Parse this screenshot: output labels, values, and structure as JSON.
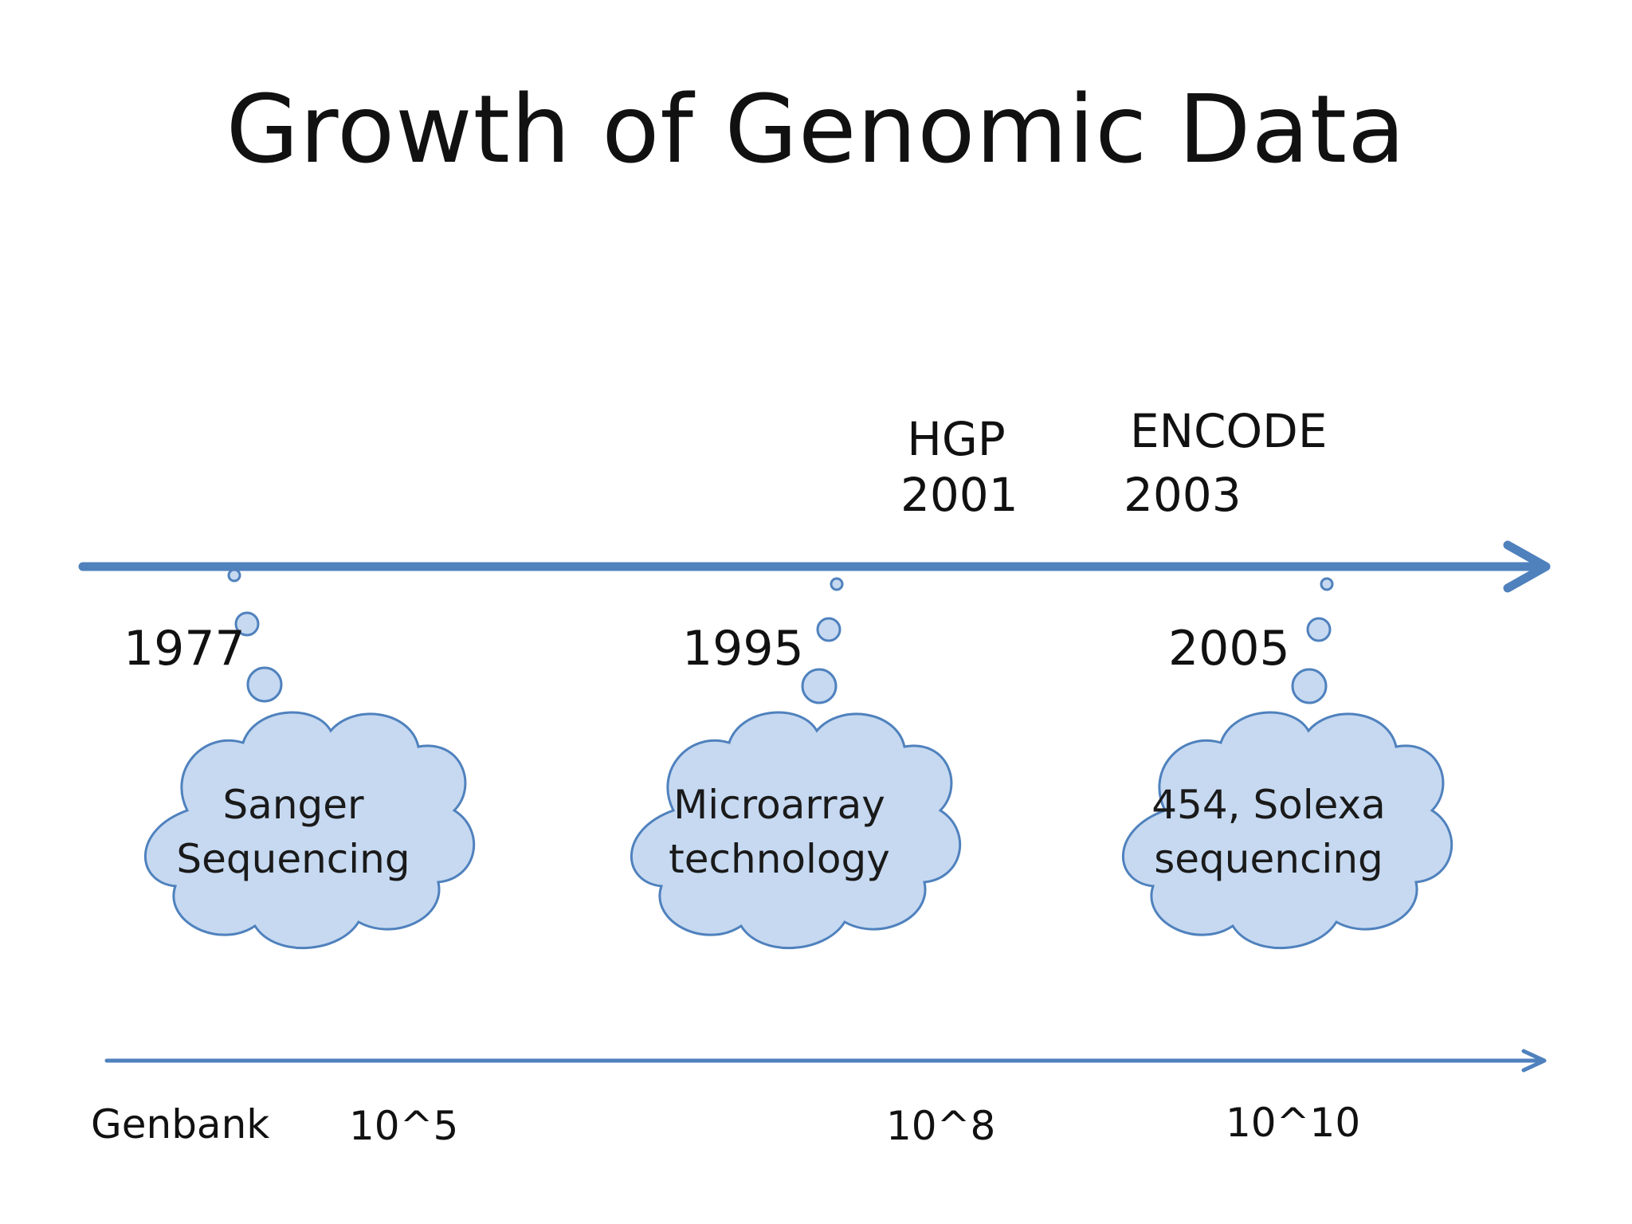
{
  "title": "Growth of Genomic Data",
  "colors": {
    "arrow": "#4f81bd",
    "cloud_fill": "#c6d9f1",
    "cloud_stroke": "#4f81bd",
    "text": "#111111"
  },
  "milestones_above": [
    {
      "name": "HGP",
      "year": "2001"
    },
    {
      "name": "ENCODE",
      "year": "2003"
    }
  ],
  "eras": [
    {
      "year": "1977",
      "line1": "Sanger",
      "line2": "Sequencing"
    },
    {
      "year": "1995",
      "line1": "Microarray",
      "line2": "technology"
    },
    {
      "year": "2005",
      "line1": "454, Solexa",
      "line2": "sequencing"
    }
  ],
  "genbank": {
    "label": "Genbank",
    "values": [
      "10^5",
      "10^8",
      "10^10"
    ]
  }
}
